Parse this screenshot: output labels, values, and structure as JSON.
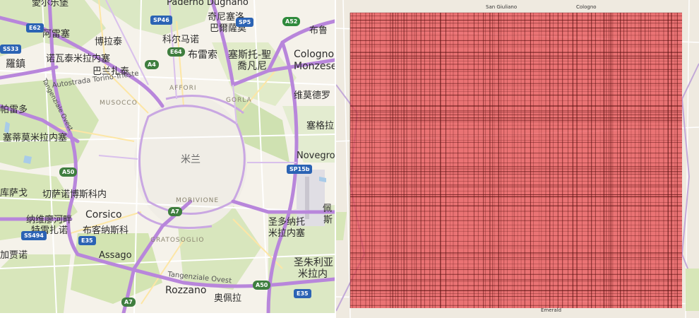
{
  "left_map": {
    "center_label": "米兰",
    "cities": [
      {
        "id": "top-cut",
        "text": "愛尔乐堡"
      },
      {
        "id": "padermo",
        "text": "Paderno Dugnano"
      },
      {
        "id": "cinisello",
        "text": "奇尼塞洛"
      },
      {
        "id": "balsamo",
        "text": "巴爾薩莫"
      },
      {
        "id": "bollate-cn",
        "text": "布鲁"
      },
      {
        "id": "arese",
        "text": "阿雷塞"
      },
      {
        "id": "bollate",
        "text": "博拉泰"
      },
      {
        "id": "cormano",
        "text": "科尔马诺"
      },
      {
        "id": "novate",
        "text": "诺瓦泰米拉内塞"
      },
      {
        "id": "baranzate",
        "text": "巴兰扎泰"
      },
      {
        "id": "bresso",
        "text": "布雷索"
      },
      {
        "id": "sesto",
        "text": "塞斯托-聖"
      },
      {
        "id": "giovanni",
        "text": "喬凡尼"
      },
      {
        "id": "cologno",
        "text": "Cologno"
      },
      {
        "id": "monzese",
        "text": "Monzese"
      },
      {
        "id": "rho",
        "text": "羅鎮"
      },
      {
        "id": "vimodrone",
        "text": "维莫德罗"
      },
      {
        "id": "pero",
        "text": "帕雷多"
      },
      {
        "id": "settimo",
        "text": "塞蒂莫米拉内塞"
      },
      {
        "id": "segrate",
        "text": "塞格拉"
      },
      {
        "id": "novegro",
        "text": "Novegro"
      },
      {
        "id": "cusago",
        "text": "库萨戈"
      },
      {
        "id": "cesano",
        "text": "切萨诺博斯科内"
      },
      {
        "id": "trezzano1",
        "text": "纳维廖河畔"
      },
      {
        "id": "trezzano2",
        "text": "特雷扎诺"
      },
      {
        "id": "corsico",
        "text": "Corsico"
      },
      {
        "id": "buccinasco",
        "text": "布客纳斯科"
      },
      {
        "id": "gaggiano",
        "text": "加贾诺"
      },
      {
        "id": "assago",
        "text": "Assago"
      },
      {
        "id": "donato1",
        "text": "圣多纳托"
      },
      {
        "id": "donato2",
        "text": "米拉内塞"
      },
      {
        "id": "peschiera",
        "text": "佩"
      },
      {
        "id": "peschiera2",
        "text": "斯"
      },
      {
        "id": "giuliano1",
        "text": "圣朱利亚"
      },
      {
        "id": "giuliano2",
        "text": "米拉内"
      },
      {
        "id": "rozzano",
        "text": "Rozzano"
      },
      {
        "id": "opera",
        "text": "奥佩拉"
      }
    ],
    "districts": [
      {
        "id": "affori",
        "text": "AFFORI"
      },
      {
        "id": "gorla",
        "text": "GORLA"
      },
      {
        "id": "musocco",
        "text": "MUSOCCO"
      },
      {
        "id": "morivione",
        "text": "MORIVIONE"
      },
      {
        "id": "gratosoglio",
        "text": "GRATOSOGLIO"
      }
    ],
    "roads": [
      {
        "id": "autostrada",
        "text": "Autostrada Torino-Trieste"
      },
      {
        "id": "tangenziale-ovest-v",
        "text": "Tangenziale Ovest"
      },
      {
        "id": "tangenziale-ovest-h",
        "text": "Tangenziale Ovest"
      }
    ],
    "shields": [
      {
        "id": "e62",
        "text": "E62",
        "color": "blue"
      },
      {
        "id": "sp46",
        "text": "SP46",
        "color": "blue"
      },
      {
        "id": "sp5",
        "text": "SP5",
        "color": "blue"
      },
      {
        "id": "a52",
        "text": "A52",
        "color": "green"
      },
      {
        "id": "ss33",
        "text": "SS33",
        "color": "blue"
      },
      {
        "id": "e64",
        "text": "E64",
        "color": "green"
      },
      {
        "id": "a4",
        "text": "A4",
        "color": "green"
      },
      {
        "id": "a50-w",
        "text": "A50",
        "color": "green"
      },
      {
        "id": "sp15b",
        "text": "SP15b",
        "color": "blue"
      },
      {
        "id": "a7-n",
        "text": "A7",
        "color": "green"
      },
      {
        "id": "ss494",
        "text": "SS494",
        "color": "blue"
      },
      {
        "id": "e35-w",
        "text": "E35",
        "color": "blue"
      },
      {
        "id": "a50-s",
        "text": "A50",
        "color": "green"
      },
      {
        "id": "e35-s",
        "text": "E35",
        "color": "blue"
      },
      {
        "id": "a7-s",
        "text": "A7",
        "color": "green"
      }
    ]
  },
  "right_map": {
    "overlay_color": "#e8454a",
    "grid_color": "#5a1010",
    "attributions": [
      {
        "id": "top-a",
        "text": "San Giuliano"
      },
      {
        "id": "top-b",
        "text": "Cologno"
      },
      {
        "id": "bottom-a",
        "text": "Emerald"
      }
    ]
  }
}
